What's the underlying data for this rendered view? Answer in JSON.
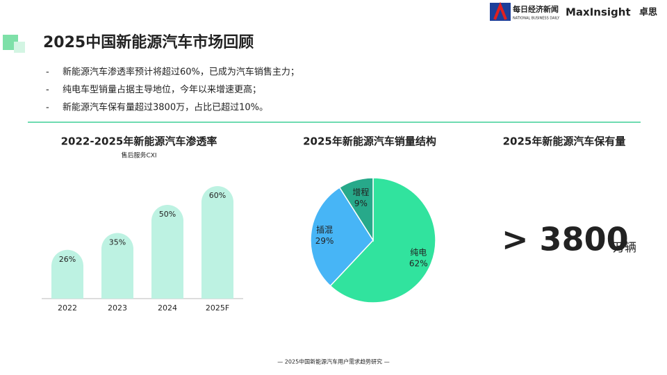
{
  "logos": {
    "nbd": "每日经济新闻",
    "nbd_en": "NATIONAL BUSINESS DAILY",
    "max": "MaxInsight",
    "max_cn": "卓思"
  },
  "title": "2025中国新能源汽车市场回顾",
  "bullets": [
    "新能源汽车渗透率预计将超过60%，已成为汽车销售主力；",
    "纯电车型销量占据主导地位，今年以来增速更高；",
    "新能源汽车保有量超过3800万，占比已超过10%。"
  ],
  "chart_data": [
    {
      "type": "bar",
      "title": "2022-2025年新能源汽车渗透率",
      "subtitle": "售后服务CXI",
      "categories": [
        "2022",
        "2023",
        "2024",
        "2025F"
      ],
      "values": [
        26,
        35,
        50,
        60
      ],
      "value_labels": [
        "26%",
        "35%",
        "50%",
        "60%"
      ],
      "color": "#bdf2e2"
    },
    {
      "type": "pie",
      "title": "2025年新能源汽车销量结构",
      "categories": [
        "纯电",
        "插混",
        "增程"
      ],
      "values": [
        62,
        29,
        9
      ],
      "value_labels": [
        "62%",
        "29%",
        "9%"
      ],
      "colors": [
        "#31e39e",
        "#47b5f6",
        "#27a98a"
      ]
    }
  ],
  "kpi": {
    "title": "2025年新能源汽车保有量",
    "value": "> 3800",
    "unit": "万辆"
  },
  "footer": "— 2025中国新能源汽车用户需求趋势研究 —"
}
